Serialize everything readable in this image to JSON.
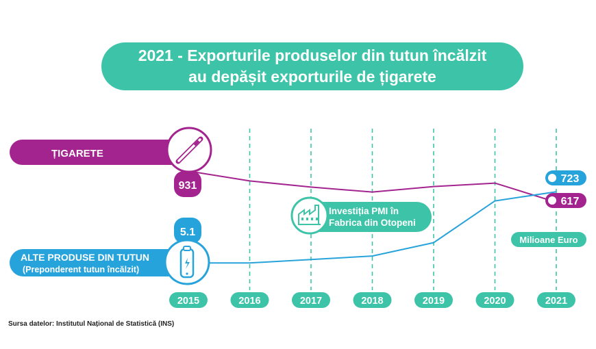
{
  "title": {
    "line1": "2021 - Exporturile produselor din tutun încălzit",
    "line2": "au depășit exporturile de țigarete"
  },
  "source": "Sursa datelor: Institutul Național de Statistică (INS)",
  "annotation": {
    "line1": "Investiția PMI în",
    "line2": "Fabrica din Otopeni",
    "icon": "factory-icon"
  },
  "unit_label": "Milioane Euro",
  "colors": {
    "purple": "#a3238f",
    "blue": "#27a3db",
    "teal": "#3dc4a8",
    "dashed": "#3dc4a8"
  },
  "chart_data": {
    "type": "line",
    "x": [
      "2015",
      "2016",
      "2017",
      "2018",
      "2019",
      "2020",
      "2021"
    ],
    "series": [
      {
        "name": "ȚIGARETE",
        "icon": "cigarette-icon",
        "color": "#a3238f",
        "values": [
          931,
          832,
          770,
          720,
          775,
          810,
          617
        ],
        "labels": {
          "2015": "931",
          "2021": "617"
        }
      },
      {
        "name": "ALTE PRODUSE DIN TUTUN",
        "subname": "(Preponderent tutun încălzit)",
        "icon": "heated-tobacco-device-icon",
        "color": "#27a3db",
        "values": [
          5.1,
          5.1,
          40,
          75,
          210,
          630,
          723
        ],
        "labels": {
          "2015": "5.1",
          "2021": "723"
        }
      }
    ],
    "annotation_year": "2017",
    "unit": "Milioane Euro"
  }
}
